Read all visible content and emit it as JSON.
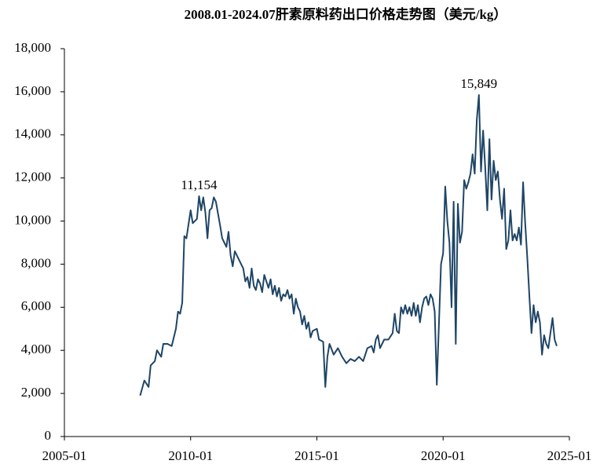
{
  "chart_data": {
    "type": "line",
    "title": "2008.01-2024.07肝素原料药出口价格走势图（美元/kg）",
    "x": [
      "2008-01",
      "2008-03",
      "2008-05",
      "2008-06",
      "2008-08",
      "2008-09",
      "2008-11",
      "2008-12",
      "2009-02",
      "2009-04",
      "2009-06",
      "2009-07",
      "2009-08",
      "2009-09",
      "2009-10",
      "2009-11",
      "2010-01",
      "2010-02",
      "2010-04",
      "2010-05",
      "2010-06",
      "2010-07",
      "2010-08",
      "2010-09",
      "2010-10",
      "2010-11",
      "2010-12",
      "2011-01",
      "2011-03",
      "2011-04",
      "2011-05",
      "2011-06",
      "2011-07",
      "2011-08",
      "2011-09",
      "2011-10",
      "2011-12",
      "2012-02",
      "2012-03",
      "2012-04",
      "2012-05",
      "2012-06",
      "2012-07",
      "2012-08",
      "2012-09",
      "2012-10",
      "2012-11",
      "2012-12",
      "2013-02",
      "2013-03",
      "2013-04",
      "2013-05",
      "2013-06",
      "2013-07",
      "2013-08",
      "2013-09",
      "2013-10",
      "2013-11",
      "2013-12",
      "2014-01",
      "2014-02",
      "2014-03",
      "2014-04",
      "2014-05",
      "2014-06",
      "2014-07",
      "2014-08",
      "2014-09",
      "2014-10",
      "2014-11",
      "2015-01",
      "2015-02",
      "2015-04",
      "2015-05",
      "2015-06",
      "2015-07",
      "2015-09",
      "2015-11",
      "2016-01",
      "2016-03",
      "2016-05",
      "2016-07",
      "2016-09",
      "2016-11",
      "2017-01",
      "2017-03",
      "2017-04",
      "2017-05",
      "2017-06",
      "2017-07",
      "2017-09",
      "2017-11",
      "2018-01",
      "2018-02",
      "2018-03",
      "2018-04",
      "2018-05",
      "2018-06",
      "2018-07",
      "2018-08",
      "2018-09",
      "2018-10",
      "2018-11",
      "2018-12",
      "2019-01",
      "2019-02",
      "2019-03",
      "2019-04",
      "2019-05",
      "2019-06",
      "2019-07",
      "2019-08",
      "2019-09",
      "2019-10",
      "2019-12",
      "2020-01",
      "2020-02",
      "2020-03",
      "2020-04",
      "2020-05",
      "2020-06",
      "2020-07",
      "2020-08",
      "2020-09",
      "2020-10",
      "2020-11",
      "2020-12",
      "2021-01",
      "2021-02",
      "2021-03",
      "2021-04",
      "2021-05",
      "2021-06",
      "2021-07",
      "2021-08",
      "2021-09",
      "2021-10",
      "2021-11",
      "2021-12",
      "2022-01",
      "2022-02",
      "2022-03",
      "2022-04",
      "2022-05",
      "2022-06",
      "2022-07",
      "2022-08",
      "2022-09",
      "2022-10",
      "2022-11",
      "2022-12",
      "2023-01",
      "2023-02",
      "2023-03",
      "2023-04",
      "2023-05",
      "2023-06",
      "2023-07",
      "2023-08",
      "2023-09",
      "2023-10",
      "2023-11",
      "2023-12",
      "2024-01",
      "2024-02",
      "2024-03",
      "2024-04",
      "2024-05",
      "2024-06",
      "2024-07"
    ],
    "series": [
      {
        "color": "#1f4566",
        "values": [
          1900,
          2600,
          2300,
          3300,
          3500,
          4000,
          3700,
          4300,
          4300,
          4200,
          5000,
          5800,
          5700,
          6200,
          9300,
          9200,
          10500,
          9900,
          10100,
          11154,
          10500,
          11100,
          10400,
          9200,
          10500,
          10600,
          11100,
          10900,
          9800,
          9200,
          9000,
          8800,
          9500,
          8400,
          7900,
          8600,
          8200,
          7800,
          7200,
          7400,
          6900,
          7800,
          7000,
          6800,
          7300,
          7100,
          6700,
          7500,
          6900,
          7300,
          6600,
          7000,
          6500,
          6900,
          6300,
          6600,
          6500,
          6800,
          6400,
          6600,
          5700,
          6400,
          6000,
          5800,
          5200,
          5600,
          5000,
          5300,
          4600,
          4900,
          5000,
          4500,
          4400,
          2300,
          3700,
          4300,
          3800,
          4100,
          3700,
          3400,
          3600,
          3500,
          3700,
          3500,
          4100,
          4200,
          3900,
          4500,
          4700,
          4100,
          4500,
          4500,
          4800,
          5700,
          4900,
          4800,
          6000,
          5700,
          6100,
          5700,
          6000,
          5600,
          6200,
          5600,
          6100,
          5300,
          6000,
          6400,
          6500,
          6100,
          6600,
          6400,
          5800,
          2400,
          8000,
          8500,
          11600,
          10000,
          9000,
          6000,
          10900,
          4300,
          10800,
          9000,
          9500,
          11900,
          11500,
          11800,
          12200,
          13100,
          12200,
          14700,
          15849,
          12300,
          14200,
          12500,
          10500,
          13800,
          11000,
          12800,
          11900,
          12300,
          11000,
          10100,
          11500,
          8700,
          9100,
          10500,
          9100,
          9400,
          9100,
          9700,
          8900,
          11800,
          9900,
          8300,
          6500,
          4800,
          6100,
          5300,
          5800,
          5300,
          3800,
          4700,
          4300,
          4100,
          4800,
          5500,
          4500,
          4200
        ]
      }
    ],
    "annotations": [
      {
        "x": "2010-05",
        "value": 11154,
        "label": "11,154"
      },
      {
        "x": "2021-06",
        "value": 15849,
        "label": "15,849"
      }
    ],
    "xlim": [
      "2005-01",
      "2025-01"
    ],
    "xticks": [
      "2005-01",
      "2010-01",
      "2015-01",
      "2020-01",
      "2025-01"
    ],
    "ylim": [
      0,
      18000
    ],
    "yticks": [
      0,
      {
        "value": 2000,
        "label": "2,000"
      },
      {
        "value": 4000,
        "label": "4,000"
      },
      {
        "value": 6000,
        "label": "6,000"
      },
      {
        "value": 8000,
        "label": "8,000"
      },
      {
        "value": 10000,
        "label": "10,000"
      },
      {
        "value": 12000,
        "label": "12,000"
      },
      {
        "value": 14000,
        "label": "14,000"
      },
      {
        "value": 16000,
        "label": "16,000"
      },
      {
        "value": 18000,
        "label": "18,000"
      }
    ],
    "grid": false
  }
}
